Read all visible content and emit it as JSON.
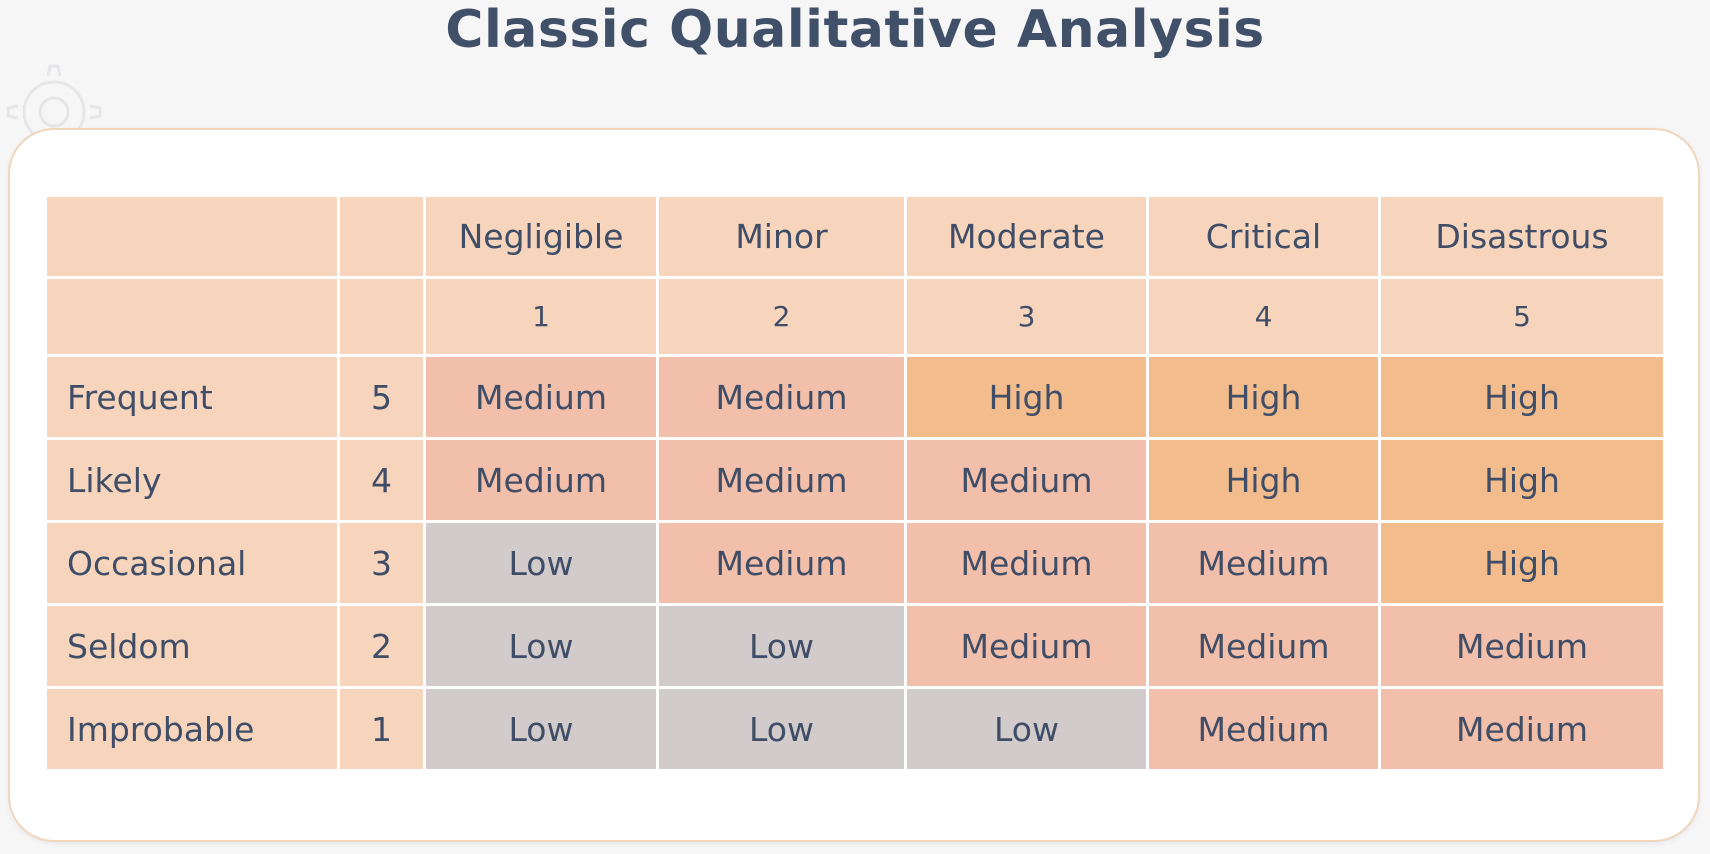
{
  "title": "Classic Qualitative Analysis",
  "icons": {
    "background": "gear-icon"
  },
  "colors": {
    "header": "#f7d5bd",
    "low": "#d2cbcb",
    "medium": "#f2bfaa",
    "high": "#f2bc8c",
    "text": "#3f4d66"
  },
  "impact": {
    "labels": [
      "Negligible",
      "Minor",
      "Moderate",
      "Critical",
      "Disastrous"
    ],
    "scores": [
      "1",
      "2",
      "3",
      "4",
      "5"
    ]
  },
  "rows": [
    {
      "label": "Frequent",
      "score": "5",
      "cells": [
        "Medium",
        "Medium",
        "High",
        "High",
        "High"
      ]
    },
    {
      "label": "Likely",
      "score": "4",
      "cells": [
        "Medium",
        "Medium",
        "Medium",
        "High",
        "High"
      ]
    },
    {
      "label": "Occasional",
      "score": "3",
      "cells": [
        "Low",
        "Medium",
        "Medium",
        "Medium",
        "High"
      ]
    },
    {
      "label": "Seldom",
      "score": "2",
      "cells": [
        "Low",
        "Low",
        "Medium",
        "Medium",
        "Medium"
      ]
    },
    {
      "label": "Improbable",
      "score": "1",
      "cells": [
        "Low",
        "Low",
        "Low",
        "Medium",
        "Medium"
      ]
    }
  ]
}
